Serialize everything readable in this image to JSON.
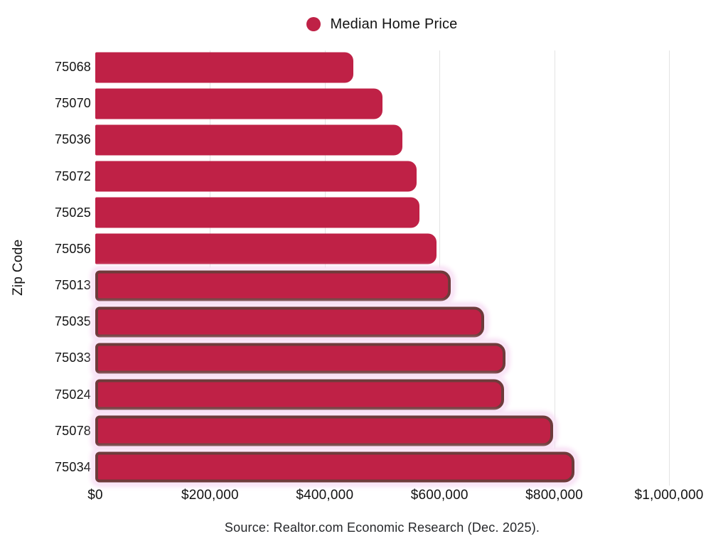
{
  "chart_data": {
    "type": "bar",
    "orientation": "horizontal",
    "title": "",
    "xlabel": "",
    "ylabel": "Zip Code",
    "legend": [
      {
        "label": "Median Home Price",
        "color": "#BF2146"
      }
    ],
    "categories": [
      "75068",
      "75070",
      "75036",
      "75072",
      "75025",
      "75056",
      "75013",
      "75035",
      "75033",
      "75024",
      "75078",
      "75034"
    ],
    "values": [
      450000,
      500000,
      535000,
      560000,
      565000,
      595000,
      620000,
      678000,
      715000,
      713000,
      798000,
      835000
    ],
    "highlighted": [
      false,
      false,
      false,
      false,
      false,
      false,
      true,
      true,
      true,
      true,
      true,
      true
    ],
    "x_ticks": [
      {
        "value": 0,
        "label": "$0"
      },
      {
        "value": 200000,
        "label": "$200,000"
      },
      {
        "value": 400000,
        "label": "$400,000"
      },
      {
        "value": 600000,
        "label": "$600,000"
      },
      {
        "value": 800000,
        "label": "$800,000"
      },
      {
        "value": 1000000,
        "label": "$1,000,000"
      }
    ],
    "xlim": [
      0,
      1060000
    ],
    "grid": "vertical",
    "legend_position": "top-center",
    "bar_color": "#BF2146",
    "highlight_border_color": "#6E3B3B",
    "highlight_glow_color": "#FAE6F7",
    "gridline_color": "#E3E3E3",
    "source": "Source: Realtor.com Economic Research (Dec. 2025)."
  }
}
